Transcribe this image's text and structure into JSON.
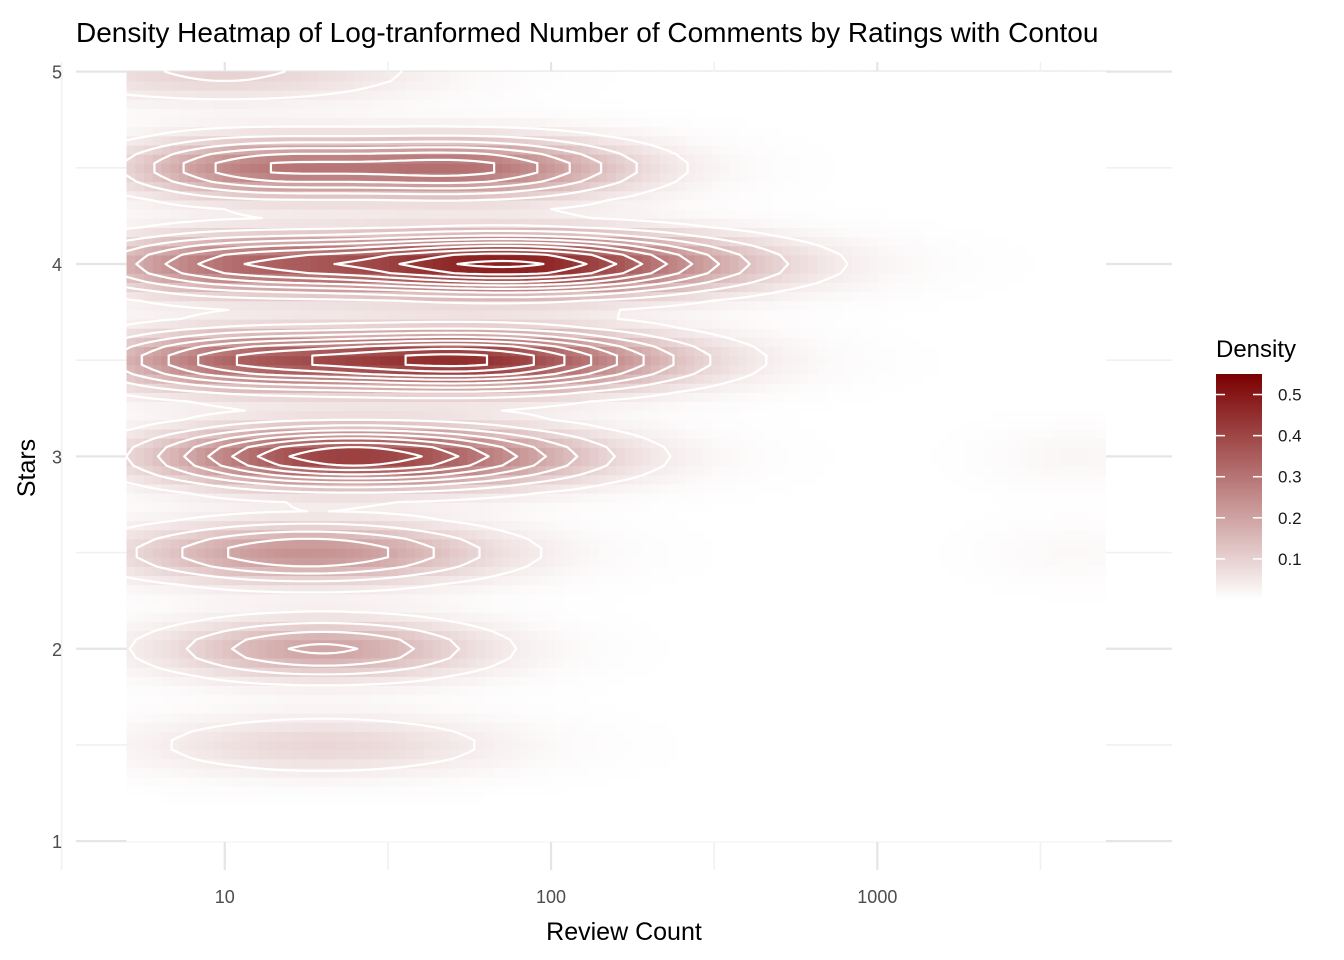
{
  "chart_data": {
    "type": "heatmap",
    "title": "Density Heatmap of Log-tranformed Number of Comments by Ratings with Contou",
    "xlabel": "Review Count",
    "ylabel": "Stars",
    "x_scale": "log10",
    "xlim": [
      3.5,
      8000
    ],
    "ylim": [
      0.85,
      5.05
    ],
    "x_ticks": [
      10,
      100,
      1000
    ],
    "x_tick_labels": [
      "10",
      "100",
      "1000"
    ],
    "y_ticks": [
      1,
      2,
      3,
      4,
      5
    ],
    "y_tick_labels": [
      "1",
      "2",
      "3",
      "4",
      "5"
    ],
    "grid": true,
    "legend": {
      "title": "Density",
      "position": "right",
      "ticks": [
        0.1,
        0.2,
        0.3,
        0.4,
        0.5
      ],
      "tick_labels": [
        "0.1",
        "0.2",
        "0.3",
        "0.4",
        "0.5"
      ],
      "range": [
        0,
        0.55
      ]
    },
    "colors": {
      "low": "#ffffff",
      "high": "#7a0000",
      "contour": "#ffffff"
    },
    "contour_levels": [
      0.04,
      0.09,
      0.14,
      0.19,
      0.24,
      0.29,
      0.34,
      0.39,
      0.44,
      0.49
    ],
    "x_range_data": [
      5,
      5000
    ],
    "density_peaks": [
      {
        "stars": 5.0,
        "review_count": 10,
        "density": 0.1,
        "spread": 0.4
      },
      {
        "stars": 4.5,
        "review_count": 12,
        "density": 0.24,
        "spread": 0.28
      },
      {
        "stars": 4.5,
        "review_count": 55,
        "density": 0.3,
        "spread": 0.34
      },
      {
        "stars": 4.0,
        "review_count": 10,
        "density": 0.24,
        "spread": 0.32
      },
      {
        "stars": 4.0,
        "review_count": 75,
        "density": 0.5,
        "spread": 0.46
      },
      {
        "stars": 3.5,
        "review_count": 10,
        "density": 0.24,
        "spread": 0.3
      },
      {
        "stars": 3.5,
        "review_count": 55,
        "density": 0.45,
        "spread": 0.42
      },
      {
        "stars": 3.0,
        "review_count": 15,
        "density": 0.22,
        "spread": 0.32
      },
      {
        "stars": 3.0,
        "review_count": 40,
        "density": 0.3,
        "spread": 0.38
      },
      {
        "stars": 2.5,
        "review_count": 18,
        "density": 0.24,
        "spread": 0.38
      },
      {
        "stars": 2.0,
        "review_count": 20,
        "density": 0.2,
        "spread": 0.33
      },
      {
        "stars": 1.5,
        "review_count": 20,
        "density": 0.09,
        "spread": 0.37
      },
      {
        "stars": 3.0,
        "review_count": 4000,
        "density": 0.02,
        "spread": 0.18
      },
      {
        "stars": 2.5,
        "review_count": 4000,
        "density": 0.015,
        "spread": 0.18
      }
    ]
  }
}
